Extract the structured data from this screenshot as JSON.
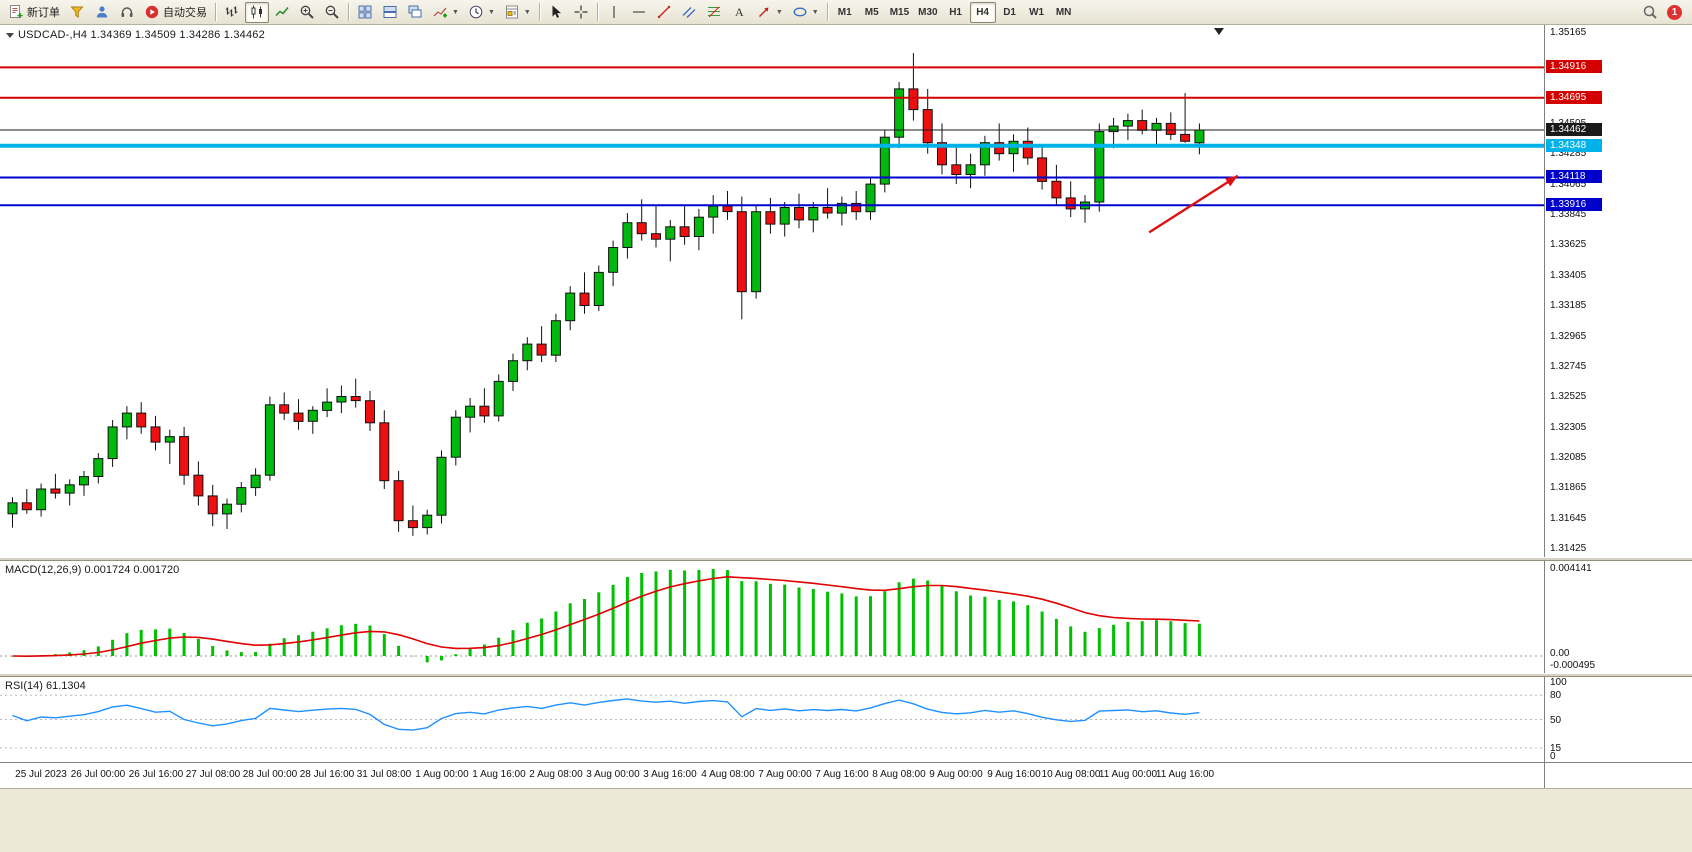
{
  "toolbar": {
    "new_order_label": "新订单",
    "autotrading_label": "自动交易",
    "timeframes": [
      "M1",
      "M5",
      "M15",
      "M30",
      "H1",
      "H4",
      "D1",
      "W1",
      "MN"
    ],
    "active_timeframe": "H4",
    "notification_count": "1"
  },
  "chart": {
    "title": "USDCAD-,H4  1.34369 1.34509 1.34286 1.34462",
    "scale": {
      "top": 1.35165,
      "bottom": 1.31425
    },
    "colors": {
      "up": "#00b80e",
      "down": "#ee1010",
      "wick": "#111111",
      "outline": "#111111"
    },
    "hlines": [
      {
        "price": 1.34916,
        "color": "#d40000",
        "width": 2
      },
      {
        "price": 1.34695,
        "color": "#d40000",
        "width": 2
      },
      {
        "price": 1.34462,
        "color": "#1a1a1a",
        "width": 1
      },
      {
        "price": 1.34348,
        "color": "#00b2e8",
        "width": 4
      },
      {
        "price": 1.34118,
        "color": "#0000cc",
        "width": 2
      },
      {
        "price": 1.33916,
        "color": "#0000cc",
        "width": 2
      }
    ],
    "arrow": {
      "color": "#dd1111",
      "from": {
        "t": 79.8,
        "p": 1.3372
      },
      "to": {
        "t": 86.0,
        "p": 1.3413
      }
    },
    "price_axis": {
      "ticks": [
        "1.35165",
        "1.34505",
        "1.34285",
        "1.34065",
        "1.33845",
        "1.33625",
        "1.33405",
        "1.33185",
        "1.32965",
        "1.32745",
        "1.32525",
        "1.32305",
        "1.32085",
        "1.31865",
        "1.31645",
        "1.31425"
      ],
      "badges": [
        {
          "label": "1.34916",
          "price": 1.34916,
          "color": "#d40000"
        },
        {
          "label": "1.34695",
          "price": 1.34695,
          "color": "#d40000"
        },
        {
          "label": "1.34462",
          "price": 1.34462,
          "color": "#1a1a1a"
        },
        {
          "label": "1.34348",
          "price": 1.34348,
          "color": "#00b2e8"
        },
        {
          "label": "1.34118",
          "price": 1.34118,
          "color": "#0000cc"
        },
        {
          "label": "1.33916",
          "price": 1.33916,
          "color": "#0000cc"
        }
      ]
    },
    "time_axis": [
      "25 Jul 2023",
      "26 Jul 00:00",
      "26 Jul 16:00",
      "27 Jul 08:00",
      "28 Jul 00:00",
      "28 Jul 16:00",
      "31 Jul 08:00",
      "1 Aug 00:00",
      "1 Aug 16:00",
      "2 Aug 08:00",
      "3 Aug 00:00",
      "3 Aug 16:00",
      "4 Aug 08:00",
      "7 Aug 00:00",
      "7 Aug 16:00",
      "8 Aug 08:00",
      "9 Aug 00:00",
      "9 Aug 16:00",
      "10 Aug 08:00",
      "11 Aug 00:00",
      "11 Aug 16:00"
    ]
  },
  "macd": {
    "label": "MACD(12,26,9) 0.001724 0.001720",
    "axis": [
      "0.004141",
      "0.00",
      "-0.000495"
    ],
    "params": {
      "fast": 12,
      "slow": 26,
      "signal": 9
    },
    "bar_color": "#00c000",
    "signal_color": "#e00000"
  },
  "rsi": {
    "label": "RSI(14) 61.1304",
    "axis": [
      "100",
      "80",
      "50",
      "15",
      "0"
    ],
    "axis_values": [
      100,
      80,
      50,
      15,
      0
    ],
    "levels": [
      80,
      50,
      15
    ],
    "period": 14,
    "line_color": "#1e90ff"
  },
  "chart_data": {
    "type": "candlestick",
    "symbol": "USDCAD-",
    "timeframe": "H4",
    "ohlc_current": {
      "open": "1.34369",
      "high": "1.34509",
      "low": "1.34286",
      "close": "1.34462"
    },
    "candles": [
      [
        1.3168,
        1.318,
        1.3158,
        1.3176
      ],
      [
        1.3176,
        1.3186,
        1.3168,
        1.3171
      ],
      [
        1.3171,
        1.319,
        1.3166,
        1.3186
      ],
      [
        1.3186,
        1.3197,
        1.3179,
        1.3183
      ],
      [
        1.3183,
        1.3193,
        1.3174,
        1.3189
      ],
      [
        1.3189,
        1.3199,
        1.3181,
        1.3195
      ],
      [
        1.3195,
        1.3212,
        1.319,
        1.3208
      ],
      [
        1.3208,
        1.3236,
        1.3202,
        1.3231
      ],
      [
        1.3231,
        1.3246,
        1.3222,
        1.3241
      ],
      [
        1.3241,
        1.3249,
        1.3226,
        1.3231
      ],
      [
        1.3231,
        1.3239,
        1.3214,
        1.322
      ],
      [
        1.322,
        1.3229,
        1.3204,
        1.3224
      ],
      [
        1.3224,
        1.3231,
        1.3189,
        1.3196
      ],
      [
        1.3196,
        1.3206,
        1.3174,
        1.3181
      ],
      [
        1.3181,
        1.3189,
        1.3159,
        1.3168
      ],
      [
        1.3168,
        1.3179,
        1.3157,
        1.3175
      ],
      [
        1.3175,
        1.3191,
        1.3169,
        1.3187
      ],
      [
        1.3187,
        1.3201,
        1.3181,
        1.3196
      ],
      [
        1.3196,
        1.3253,
        1.3192,
        1.3247
      ],
      [
        1.3247,
        1.3256,
        1.3236,
        1.3241
      ],
      [
        1.3241,
        1.3251,
        1.3229,
        1.3235
      ],
      [
        1.3235,
        1.3246,
        1.3226,
        1.3243
      ],
      [
        1.3243,
        1.3259,
        1.3238,
        1.3249
      ],
      [
        1.3249,
        1.3261,
        1.3241,
        1.3253
      ],
      [
        1.3253,
        1.3266,
        1.3245,
        1.325
      ],
      [
        1.325,
        1.3257,
        1.3228,
        1.3234
      ],
      [
        1.3234,
        1.3243,
        1.3186,
        1.3192
      ],
      [
        1.3192,
        1.3199,
        1.3155,
        1.3163
      ],
      [
        1.3163,
        1.3174,
        1.3152,
        1.3158
      ],
      [
        1.3158,
        1.3171,
        1.3153,
        1.3167
      ],
      [
        1.3167,
        1.3214,
        1.3161,
        1.3209
      ],
      [
        1.3209,
        1.3243,
        1.3203,
        1.3238
      ],
      [
        1.3238,
        1.3252,
        1.3227,
        1.3246
      ],
      [
        1.3246,
        1.3259,
        1.3234,
        1.3239
      ],
      [
        1.3239,
        1.3269,
        1.3235,
        1.3264
      ],
      [
        1.3264,
        1.3284,
        1.3257,
        1.3279
      ],
      [
        1.3279,
        1.3296,
        1.3272,
        1.3291
      ],
      [
        1.3291,
        1.3304,
        1.3278,
        1.3283
      ],
      [
        1.3283,
        1.3313,
        1.3278,
        1.3308
      ],
      [
        1.3308,
        1.3333,
        1.3301,
        1.3328
      ],
      [
        1.3328,
        1.3343,
        1.3313,
        1.3319
      ],
      [
        1.3319,
        1.3348,
        1.3315,
        1.3343
      ],
      [
        1.3343,
        1.3366,
        1.3333,
        1.3361
      ],
      [
        1.3361,
        1.3386,
        1.3353,
        1.3379
      ],
      [
        1.3379,
        1.3396,
        1.3366,
        1.3371
      ],
      [
        1.3371,
        1.3391,
        1.3361,
        1.3367
      ],
      [
        1.3367,
        1.3381,
        1.3351,
        1.3376
      ],
      [
        1.3376,
        1.3391,
        1.3363,
        1.3369
      ],
      [
        1.3369,
        1.3389,
        1.3359,
        1.3383
      ],
      [
        1.3383,
        1.3399,
        1.3371,
        1.3391
      ],
      [
        1.3391,
        1.3402,
        1.3381,
        1.3387
      ],
      [
        1.3387,
        1.3398,
        1.3309,
        1.3329
      ],
      [
        1.3329,
        1.3392,
        1.3324,
        1.3387
      ],
      [
        1.3387,
        1.3397,
        1.3371,
        1.3378
      ],
      [
        1.3378,
        1.3394,
        1.3369,
        1.339
      ],
      [
        1.339,
        1.34,
        1.3375,
        1.3381
      ],
      [
        1.3381,
        1.3394,
        1.3372,
        1.339
      ],
      [
        1.339,
        1.3404,
        1.3382,
        1.3386
      ],
      [
        1.3386,
        1.3398,
        1.3377,
        1.3393
      ],
      [
        1.3393,
        1.3402,
        1.3381,
        1.3387
      ],
      [
        1.3387,
        1.3412,
        1.3381,
        1.3407
      ],
      [
        1.3407,
        1.3446,
        1.3401,
        1.3441
      ],
      [
        1.3441,
        1.3481,
        1.3433,
        1.3476
      ],
      [
        1.3476,
        1.3502,
        1.3453,
        1.3461
      ],
      [
        1.3461,
        1.3476,
        1.3429,
        1.3437
      ],
      [
        1.3437,
        1.3451,
        1.3414,
        1.3421
      ],
      [
        1.3421,
        1.3436,
        1.3407,
        1.3414
      ],
      [
        1.3414,
        1.3429,
        1.3404,
        1.3421
      ],
      [
        1.3421,
        1.3442,
        1.3413,
        1.3437
      ],
      [
        1.3437,
        1.3451,
        1.3424,
        1.3429
      ],
      [
        1.3429,
        1.3443,
        1.3416,
        1.3438
      ],
      [
        1.3438,
        1.3448,
        1.3421,
        1.3426
      ],
      [
        1.3426,
        1.3434,
        1.3403,
        1.3409
      ],
      [
        1.3409,
        1.3421,
        1.3392,
        1.3397
      ],
      [
        1.3397,
        1.3409,
        1.3383,
        1.3389
      ],
      [
        1.3389,
        1.3399,
        1.3379,
        1.3394
      ],
      [
        1.3394,
        1.3451,
        1.3387,
        1.3445
      ],
      [
        1.3445,
        1.3455,
        1.3433,
        1.3449
      ],
      [
        1.3449,
        1.3458,
        1.3439,
        1.3453
      ],
      [
        1.3453,
        1.3461,
        1.3443,
        1.3446
      ],
      [
        1.3446,
        1.3455,
        1.3435,
        1.3451
      ],
      [
        1.3451,
        1.3459,
        1.3439,
        1.3443
      ],
      [
        1.3443,
        1.3473,
        1.3437,
        1.3438
      ],
      [
        1.34369,
        1.34509,
        1.34286,
        1.34462
      ]
    ]
  }
}
